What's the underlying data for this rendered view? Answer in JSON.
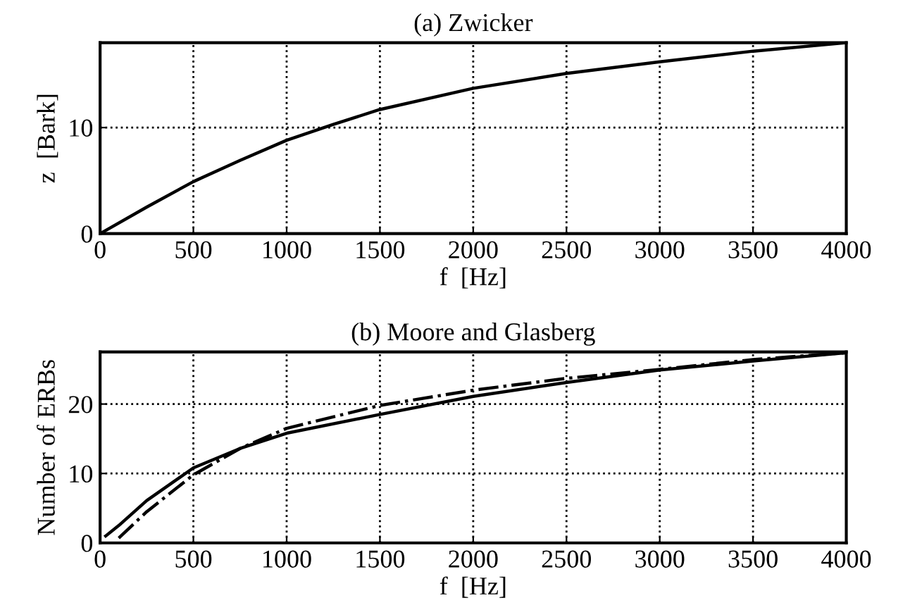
{
  "chart_data": [
    {
      "type": "line",
      "title": "(a) Zwicker",
      "xlabel": "f  [Hz]",
      "ylabel": "z  [Bark]",
      "xlim": [
        0,
        4000
      ],
      "ylim": [
        0,
        18
      ],
      "xticks": [
        0,
        500,
        1000,
        1500,
        2000,
        2500,
        3000,
        3500,
        4000
      ],
      "yticks": [
        0,
        10
      ],
      "grid": true,
      "legend": false,
      "series": [
        {
          "color": "#000000",
          "line_style": "solid",
          "x": [
            0,
            250,
            500,
            750,
            1000,
            1250,
            1500,
            2000,
            2500,
            3000,
            3500,
            4000
          ],
          "values": [
            0,
            2.5,
            4.9,
            6.9,
            8.8,
            10.3,
            11.7,
            13.7,
            15.1,
            16.2,
            17.2,
            18.0
          ]
        }
      ]
    },
    {
      "type": "line",
      "title": "(b) Moore and Glasberg",
      "xlabel": "f  [Hz]",
      "ylabel": "Number of ERBs",
      "xlim": [
        0,
        4000
      ],
      "ylim": [
        0,
        27.5
      ],
      "xticks": [
        0,
        500,
        1000,
        1500,
        2000,
        2500,
        3000,
        3500,
        4000
      ],
      "yticks": [
        0,
        10,
        20
      ],
      "grid": true,
      "legend": false,
      "series": [
        {
          "color": "#000000",
          "line_style": "solid",
          "x": [
            30,
            100,
            250,
            500,
            750,
            1000,
            1500,
            2000,
            2500,
            3000,
            3500,
            4000
          ],
          "values": [
            1.0,
            2.5,
            6.1,
            10.8,
            13.6,
            15.8,
            18.5,
            21.1,
            23.1,
            24.9,
            26.2,
            27.4
          ]
        },
        {
          "color": "#000000",
          "line_style": "dashed",
          "x": [
            100,
            250,
            500,
            750,
            1000,
            1500,
            2000,
            2500,
            3000,
            3500,
            4000
          ],
          "values": [
            0.7,
            4.5,
            9.8,
            13.6,
            16.5,
            19.8,
            22.0,
            23.7,
            25.0,
            26.4,
            27.4
          ]
        }
      ]
    }
  ]
}
